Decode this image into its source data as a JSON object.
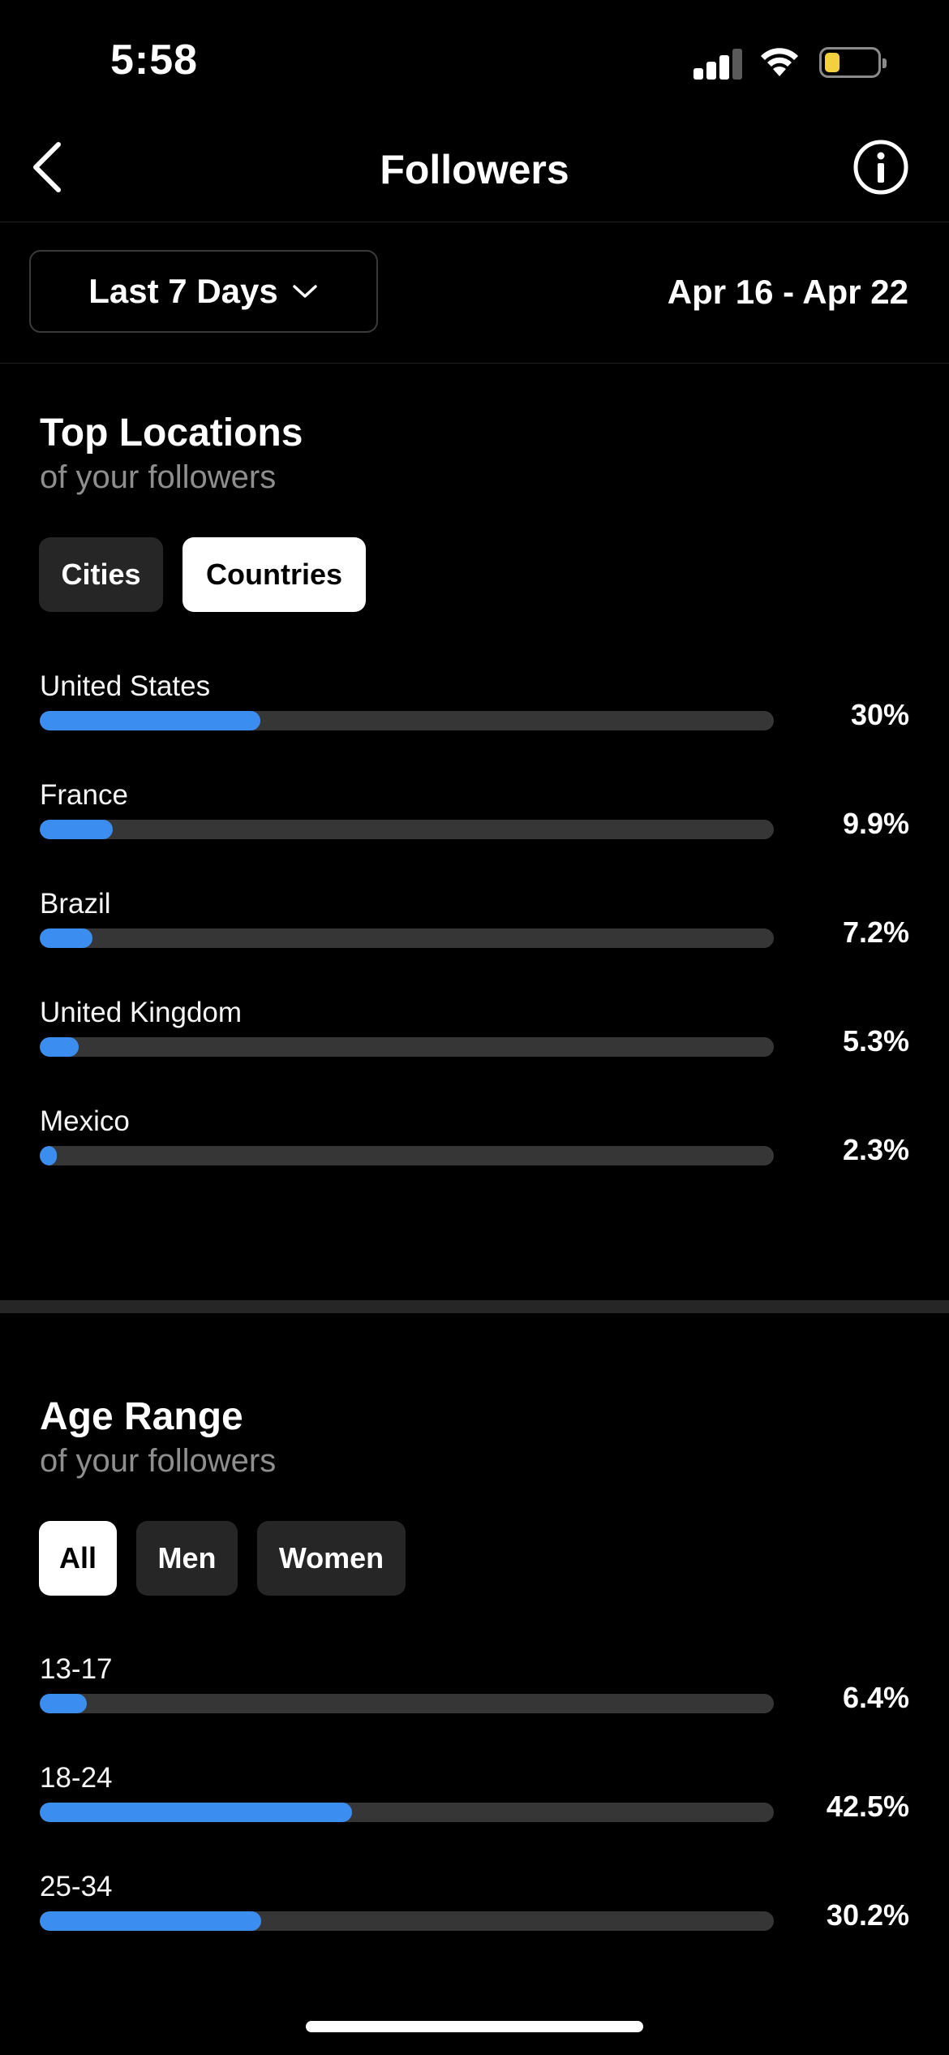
{
  "status": {
    "time": "5:58"
  },
  "nav": {
    "title": "Followers"
  },
  "filter": {
    "range_label": "Last 7 Days",
    "date_range": "Apr 16 - Apr 22"
  },
  "locations": {
    "title": "Top Locations",
    "subtitle": "of your followers",
    "tabs": [
      {
        "label": "Cities",
        "active": false
      },
      {
        "label": "Countries",
        "active": true
      }
    ],
    "rows": [
      {
        "label": "United States",
        "value_text": "30%",
        "fraction": 0.3
      },
      {
        "label": "France",
        "value_text": "9.9%",
        "fraction": 0.099
      },
      {
        "label": "Brazil",
        "value_text": "7.2%",
        "fraction": 0.072
      },
      {
        "label": "United Kingdom",
        "value_text": "5.3%",
        "fraction": 0.053
      },
      {
        "label": "Mexico",
        "value_text": "2.3%",
        "fraction": 0.023
      }
    ]
  },
  "age": {
    "title": "Age Range",
    "subtitle": "of your followers",
    "tabs": [
      {
        "label": "All",
        "active": true
      },
      {
        "label": "Men",
        "active": false
      },
      {
        "label": "Women",
        "active": false
      }
    ],
    "rows": [
      {
        "label": "13-17",
        "value_text": "6.4%",
        "fraction": 0.064
      },
      {
        "label": "18-24",
        "value_text": "42.5%",
        "fraction": 0.425
      },
      {
        "label": "25-34",
        "value_text": "30.2%",
        "fraction": 0.302
      }
    ]
  },
  "colors": {
    "accent": "#3b8ef0",
    "track": "#363636",
    "background": "#000000",
    "pill": "#262626"
  }
}
